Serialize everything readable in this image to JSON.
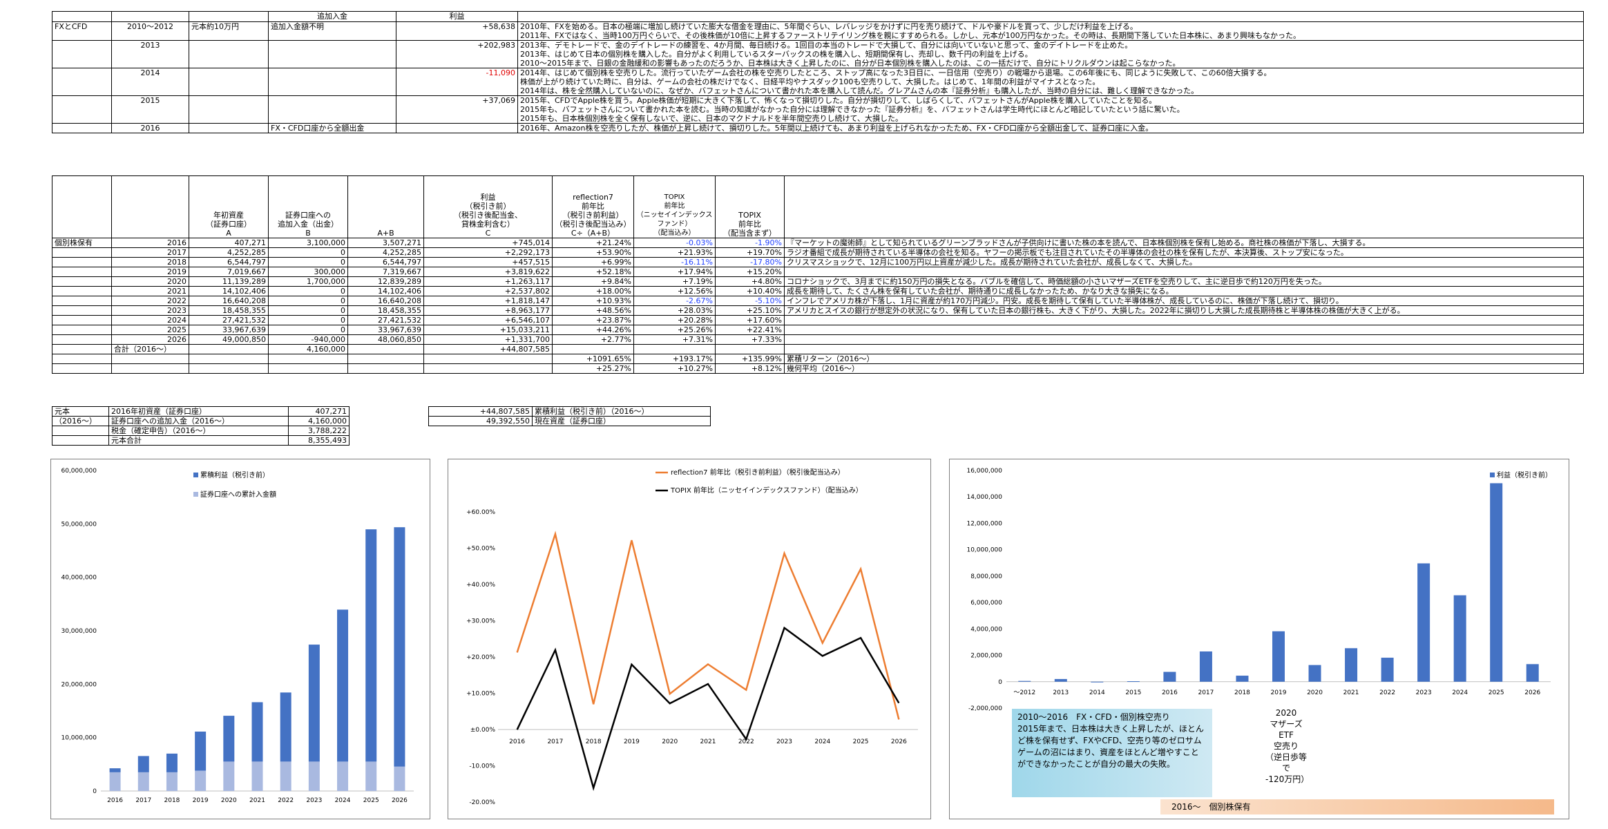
{
  "t1": {
    "h_add": "追加入金",
    "h_profit": "利益",
    "rows": [
      {
        "a": "FXとCFD",
        "year": "2010～2012",
        "c": "元本約10万円",
        "d": "追加入金額不明",
        "profit": "+58,638",
        "notes": [
          "2010年、FXを始める。日本の極端に増加し続けていた膨大な借金を理由に、5年間ぐらい、レバレッジをかけずに円を売り続けて、ドルや豪ドルを買って、少しだけ利益を上げる。",
          "2011年、FXではなく、当時100万円ぐらいで、その後株価が10倍に上昇するファーストリテイリング株を親にすすめられる。しかし、元本が100万円なかった。その時は、長期間下落していた日本株に、あまり興味もなかった。"
        ]
      },
      {
        "a": "",
        "year": "2013",
        "c": "",
        "d": "",
        "profit": "+202,983",
        "notes": [
          "2013年、デモトレードで、金のデイトレードの練習を、4か月間、毎日続ける。1回目の本当のトレードで大損して、自分には向いていないと思って、金のデイトレードを止めた。",
          "2013年、はじめて日本の個別株を購入した。自分がよく利用しているスターバックスの株を購入し、短期間保有し、売却し、数千円の利益を上げる。",
          "2010～2015年まで、日銀の金融緩和の影響もあったのだろうか、日本株は大きく上昇したのに、自分が日本個別株を購入したのは、この一括だけで、自分にトリクルダウンは起こらなかった。"
        ]
      },
      {
        "a": "",
        "year": "2014",
        "c": "",
        "d": "",
        "profit": "-11,090",
        "notes": [
          "2014年、はじめて個別株を空売りした。流行っていたゲーム会社の株を空売りしたところ、ストップ高になった3日目に、一日信用（空売り）の戦場から退場。この6年後にも、同じように失敗して、この60倍大損する。",
          "株価が上がり続けていた時に、自分は、ゲームの会社の株だけでなく、日経平均やナスダック100も空売りして、大損した。はじめて、1年間の利益がマイナスとなった。",
          "2014年は、株を全然購入していないのに、なぜか、バフェットさんについて書かれた本を購入して読んだ。グレアムさんの本『証券分析』も購入したが、当時の自分には、難しく理解できなかった。"
        ]
      },
      {
        "a": "",
        "year": "2015",
        "c": "",
        "d": "",
        "profit": "+37,069",
        "notes": [
          "2015年、CFDでApple株を買う。Apple株価が短期に大きく下落して、怖くなって損切りした。自分が損切りして、しばらくして、バフェットさんがApple株を購入していたことを知る。",
          "2015年も、バフェットさんについて書かれた本を読む。当時の知識がなかった自分には理解できなかった『証券分析』を、バフェットさんは学生時代にほとんど暗記していたという話に驚いた。",
          "2015年も、日本株個別株を全く保有しないで、逆に、日本のマクドナルドを半年間空売りし続けて、大損した。"
        ]
      },
      {
        "a": "",
        "year": "2016",
        "c": "",
        "d": "FX・CFD口座から全額出金",
        "profit": "",
        "notes": [
          "2016年、Amazon株を空売りしたが、株価が上昇し続けて、損切りした。5年間以上続けても、あまり利益を上げられなかったため、FX・CFD口座から全額出金して、証券口座に入金。"
        ]
      }
    ]
  },
  "t2": {
    "h_A": "年初資産\n（証券口座）\nA",
    "h_B": "証券口座への\n追加入金（出金）\nB",
    "h_AB": "A+B",
    "h_C": "利益\n（税引き前）\n（税引き後配当金、\n貸株金利含む）\nC",
    "h_ref": "reflection7\n前年比\n（税引き前利益）\n（税引き後配当込み）\nC÷（A+B）",
    "h_topix1": "TOPIX\n前年比\n（ニッセイインデックスファンド）\n（配当込み）",
    "h_topix2": "TOPIX\n前年比\n（配当含まず）",
    "label": "個別株保有",
    "rows": [
      {
        "y": "2016",
        "a": "407,271",
        "b": "3,100,000",
        "ab": "3,507,271",
        "c": "+745,014",
        "r": "+21.24%",
        "t1": "-0.03%",
        "t2": "-1.90%",
        "note": "『マーケットの魔術師』として知られているグリーンブラッドさんが子供向けに書いた株の本を読んで、日本株個別株を保有し始める。商社株の株価が下落し、大損する。"
      },
      {
        "y": "2017",
        "a": "4,252,285",
        "b": "0",
        "ab": "4,252,285",
        "c": "+2,292,173",
        "r": "+53.90%",
        "t1": "+21.93%",
        "t2": "+19.70%",
        "note": "ラジオ番組で成長が期待されている半導体の会社を知る。ヤフーの掲示板でも注目されていたその半導体の会社の株を保有したが、本決算後、ストップ安になった。"
      },
      {
        "y": "2018",
        "a": "6,544,797",
        "b": "0",
        "ab": "6,544,797",
        "c": "+457,515",
        "r": "+6.99%",
        "t1": "-16.11%",
        "t2": "-17.80%",
        "note": "クリスマスショックで、12月に100万円以上資産が減少した。成長が期待されていた会社が、成長しなくて、大損した。"
      },
      {
        "y": "2019",
        "a": "7,019,667",
        "b": "300,000",
        "ab": "7,319,667",
        "c": "+3,819,622",
        "r": "+52.18%",
        "t1": "+17.94%",
        "t2": "+15.20%",
        "note": ""
      },
      {
        "y": "2020",
        "a": "11,139,289",
        "b": "1,700,000",
        "ab": "12,839,289",
        "c": "+1,263,117",
        "r": "+9.84%",
        "t1": "+7.19%",
        "t2": "+4.80%",
        "note": "コロナショックで、3月までに約150万円の損失となる。バブルを確信して、時価総額の小さいマザーズETFを空売りして、主に逆日歩で約120万円を失った。"
      },
      {
        "y": "2021",
        "a": "14,102,406",
        "b": "0",
        "ab": "14,102,406",
        "c": "+2,537,802",
        "r": "+18.00%",
        "t1": "+12.56%",
        "t2": "+10.40%",
        "note": "成長を期待して、たくさん株を保有していた会社が、期待通りに成長しなかったため、かなり大きな損失になる。"
      },
      {
        "y": "2022",
        "a": "16,640,208",
        "b": "0",
        "ab": "16,640,208",
        "c": "+1,818,147",
        "r": "+10.93%",
        "t1": "-2.67%",
        "t2": "-5.10%",
        "note": "インフレでアメリカ株が下落し、1月に資産が約170万円減少。円安。成長を期待して保有していた半導体株が、成長しているのに、株価が下落し続けて、損切り。"
      },
      {
        "y": "2023",
        "a": "18,458,355",
        "b": "0",
        "ab": "18,458,355",
        "c": "+8,963,177",
        "r": "+48.56%",
        "t1": "+28.03%",
        "t2": "+25.10%",
        "note": "アメリカとスイスの銀行が想定外の状況になり、保有していた日本の銀行株も、大きく下がり、大損した。2022年に損切りし大損した成長期待株と半導体株の株価が大きく上がる。"
      },
      {
        "y": "2024",
        "a": "27,421,532",
        "b": "0",
        "ab": "27,421,532",
        "c": "+6,546,107",
        "r": "+23.87%",
        "t1": "+20.28%",
        "t2": "+17.60%",
        "note": ""
      },
      {
        "y": "2025",
        "a": "33,967,639",
        "b": "0",
        "ab": "33,967,639",
        "c": "+15,033,211",
        "r": "+44.26%",
        "t1": "+25.26%",
        "t2": "+22.41%",
        "note": ""
      },
      {
        "y": "2026",
        "a": "49,000,850",
        "b": "-940,000",
        "ab": "48,060,850",
        "c": "+1,331,700",
        "r": "+2.77%",
        "t1": "+7.31%",
        "t2": "+7.33%",
        "note": ""
      }
    ],
    "sum_label": "合計（2016～）",
    "sum_b": "4,160,000",
    "sum_c": "+44,807,585",
    "cum": {
      "r": "+1091.65%",
      "t1": "+193.17%",
      "t2": "+135.99%",
      "label": "累積リターン（2016～）"
    },
    "geo": {
      "r": "+25.27%",
      "t1": "+10.27%",
      "t2": "+8.12%",
      "label": "幾何平均（2016～）"
    }
  },
  "t3": {
    "head1": "元本",
    "head2": "（2016～）",
    "rows": [
      {
        "label": "2016年初資産（証券口座）",
        "value": "407,271"
      },
      {
        "label": "証券口座への追加入金（2016～）",
        "value": "4,160,000"
      },
      {
        "label": "税金（確定申告）（2016～）",
        "value": "3,788,222"
      },
      {
        "label": "元本合計",
        "value": "8,355,493"
      }
    ]
  },
  "t4": {
    "rows": [
      {
        "value": "+44,807,585",
        "label": "累積利益（税引き前）（2016～）"
      },
      {
        "value": "49,392,550",
        "label": "現在資産（証券口座）"
      }
    ]
  },
  "chart_data": [
    {
      "type": "bar",
      "title": "",
      "categories": [
        "2016",
        "2017",
        "2018",
        "2019",
        "2020",
        "2021",
        "2022",
        "2023",
        "2024",
        "2025",
        "2026"
      ],
      "series": [
        {
          "name": "累積利益（税引き前）",
          "values": [
            745014,
            3037187,
            3494702,
            7314324,
            8577441,
            11115243,
            12933390,
            21896567,
            28442674,
            43475885,
            44807585
          ],
          "color": "#4472c4"
        },
        {
          "name": "証券口座への累計入金額",
          "values": [
            3507271,
            3507271,
            3507271,
            3807271,
            5507271,
            5507271,
            5507271,
            5507271,
            5507271,
            5507271,
            4567271
          ],
          "color": "#a9b9e0"
        }
      ],
      "ylim": [
        0,
        60000000
      ],
      "yticks": [
        "0",
        "10,000,000",
        "20,000,000",
        "30,000,000",
        "40,000,000",
        "50,000,000",
        "60,000,000"
      ]
    },
    {
      "type": "line",
      "title": "",
      "categories": [
        "2016",
        "2017",
        "2018",
        "2019",
        "2020",
        "2021",
        "2022",
        "2023",
        "2024",
        "2025",
        "2026"
      ],
      "series": [
        {
          "name": "reflection7 前年比（税引き前利益）（税引後配当込み）",
          "values": [
            21.24,
            53.9,
            6.99,
            52.18,
            9.84,
            18.0,
            10.93,
            48.56,
            23.87,
            44.26,
            2.77
          ],
          "color": "#ed7d31"
        },
        {
          "name": "TOPIX 前年比（ニッセイインデックスファンド）（配当込み）",
          "values": [
            -0.03,
            21.93,
            -16.11,
            17.94,
            7.19,
            12.56,
            -2.67,
            28.03,
            20.28,
            25.26,
            7.31
          ],
          "color": "#000000"
        }
      ],
      "ylim": [
        -20,
        60
      ],
      "yticks": [
        "-20.00%",
        "-10.00%",
        "±0.00%",
        "+10.00%",
        "+20.00%",
        "+30.00%",
        "+40.00%",
        "+50.00%",
        "+60.00%"
      ]
    },
    {
      "type": "bar",
      "title": "",
      "categories": [
        "～2012",
        "2013",
        "2014",
        "2015",
        "2016",
        "2017",
        "2018",
        "2019",
        "2020",
        "2021",
        "2022",
        "2023",
        "2024",
        "2025",
        "2026"
      ],
      "series": [
        {
          "name": "利益（税引き前）",
          "values": [
            58638,
            202983,
            -11090,
            37069,
            745014,
            2292173,
            457515,
            3819622,
            1263117,
            2537802,
            1818147,
            8963177,
            6546107,
            15033211,
            1331700
          ],
          "color": "#4472c4"
        }
      ],
      "ylim": [
        -2000000,
        16000000
      ],
      "yticks": [
        "-2,000,000",
        "0",
        "2,000,000",
        "4,000,000",
        "6,000,000",
        "8,000,000",
        "10,000,000",
        "12,000,000",
        "14,000,000",
        "16,000,000"
      ]
    }
  ],
  "annotations": {
    "note": "2010～2016　FX・CFD・個別株空売り\n2015年まで、日本株は大きく上昇したが、ほとんど株を保有せず、FXやCFD、空売り等のゼロサムゲームの沼にはまり、資産をほとんど増やすことができなかったことが自分の最大の失敗。",
    "etf": "2020\nマザーズ\nETF\n空売り\n（逆日歩等で\n-120万円）",
    "range": "2016～　個別株保有"
  }
}
